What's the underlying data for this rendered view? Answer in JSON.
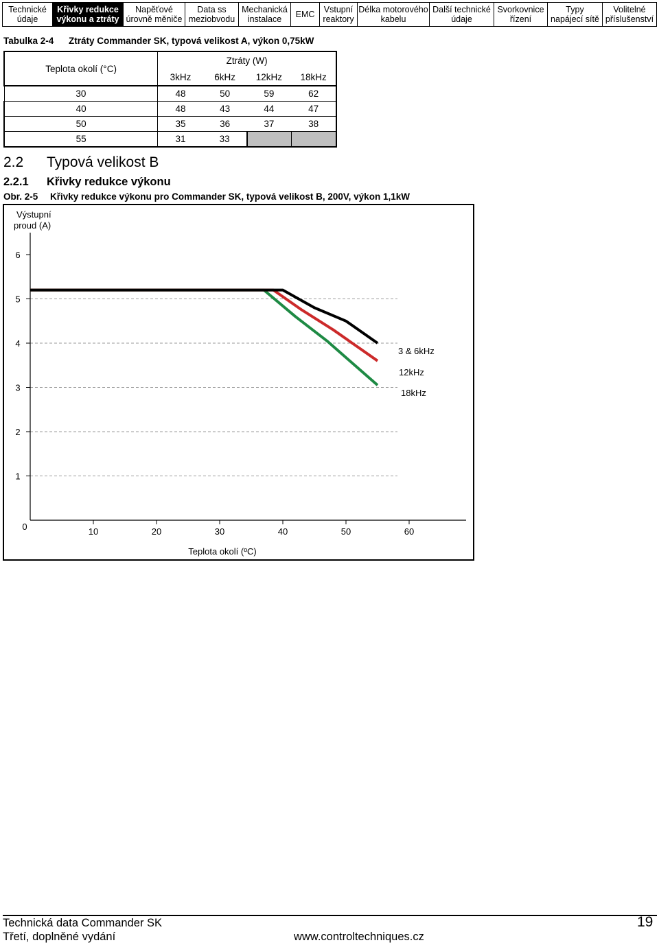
{
  "nav": {
    "tabs": [
      {
        "line1": "Technické",
        "line2": "údaje",
        "active": false
      },
      {
        "line1": "Křivky redukce",
        "line2": "výkonu a ztráty",
        "active": true
      },
      {
        "line1": "Napěťové",
        "line2": "úrovně měniče",
        "active": false
      },
      {
        "line1": "Data ss",
        "line2": "meziobvodu",
        "active": false
      },
      {
        "line1": "Mechanická",
        "line2": "instalace",
        "active": false
      },
      {
        "line1": "EMC",
        "line2": "",
        "active": false
      },
      {
        "line1": "Vstupní",
        "line2": "reaktory",
        "active": false
      },
      {
        "line1": "Délka motorového",
        "line2": "kabelu",
        "active": false
      },
      {
        "line1": "Další technické",
        "line2": "údaje",
        "active": false
      },
      {
        "line1": "Svorkovnice",
        "line2": "řízení",
        "active": false
      },
      {
        "line1": "Typy",
        "line2": "napájecí sítě",
        "active": false
      },
      {
        "line1": "Volitelné",
        "line2": "příslušenství",
        "active": false
      }
    ]
  },
  "table_caption": {
    "number": "Tabulka 2-4",
    "text": "Ztráty Commander SK, typová velikost A, výkon 0,75kW"
  },
  "loss_table": {
    "row_header": "Teplota okolí (°C)",
    "group_header": "Ztráty (W)",
    "columns": [
      "3kHz",
      "6kHz",
      "12kHz",
      "18kHz"
    ],
    "rows": [
      {
        "temp": "30",
        "values": [
          "48",
          "50",
          "59",
          "62"
        ]
      },
      {
        "temp": "40",
        "values": [
          "48",
          "43",
          "44",
          "47"
        ]
      },
      {
        "temp": "50",
        "values": [
          "35",
          "36",
          "37",
          "38"
        ]
      },
      {
        "temp": "55",
        "values": [
          "31",
          "33",
          "",
          ""
        ]
      }
    ]
  },
  "section": {
    "h2_number": "2.2",
    "h2_text": "Typová velikost B",
    "h3_number": "2.2.1",
    "h3_text": "Křivky redukce výkonu"
  },
  "figure_caption": {
    "number": "Obr. 2-5",
    "text": "Křivky redukce výkonu pro Commander SK, typová velikost B, 200V, výkon 1,1kW"
  },
  "chart_data": {
    "type": "line",
    "ylabel_line1": "Výstupní",
    "ylabel_line2": "proud (A)",
    "xlabel": "Teplota okolí (ºC)",
    "xlim": [
      0,
      65
    ],
    "ylim": [
      0,
      7
    ],
    "x_ticks": [
      "10",
      "20",
      "30",
      "40",
      "50",
      "60"
    ],
    "y_ticks": [
      "0",
      "1",
      "2",
      "3",
      "4",
      "5",
      "6"
    ],
    "grid": "dashed horizontal",
    "series": [
      {
        "name": "3 & 6kHz",
        "color": "#000000",
        "points": [
          [
            0,
            5.2
          ],
          [
            40,
            5.2
          ],
          [
            45,
            4.8
          ],
          [
            50,
            4.5
          ],
          [
            55,
            4.0
          ]
        ]
      },
      {
        "name": "12kHz",
        "color": "#cc2a2a",
        "points": [
          [
            0,
            5.2
          ],
          [
            38.5,
            5.2
          ],
          [
            43,
            4.75
          ],
          [
            48,
            4.3
          ],
          [
            55,
            3.6
          ]
        ]
      },
      {
        "name": "18kHz",
        "color": "#1e8a44",
        "points": [
          [
            0,
            5.2
          ],
          [
            37,
            5.2
          ],
          [
            42,
            4.6
          ],
          [
            47,
            4.05
          ],
          [
            55,
            3.05
          ]
        ]
      }
    ]
  },
  "footer": {
    "left_line1": "Technická data Commander SK",
    "left_line2": "Třetí, doplněné vydání",
    "url": "www.controltechniques.cz",
    "page_number": "19"
  }
}
